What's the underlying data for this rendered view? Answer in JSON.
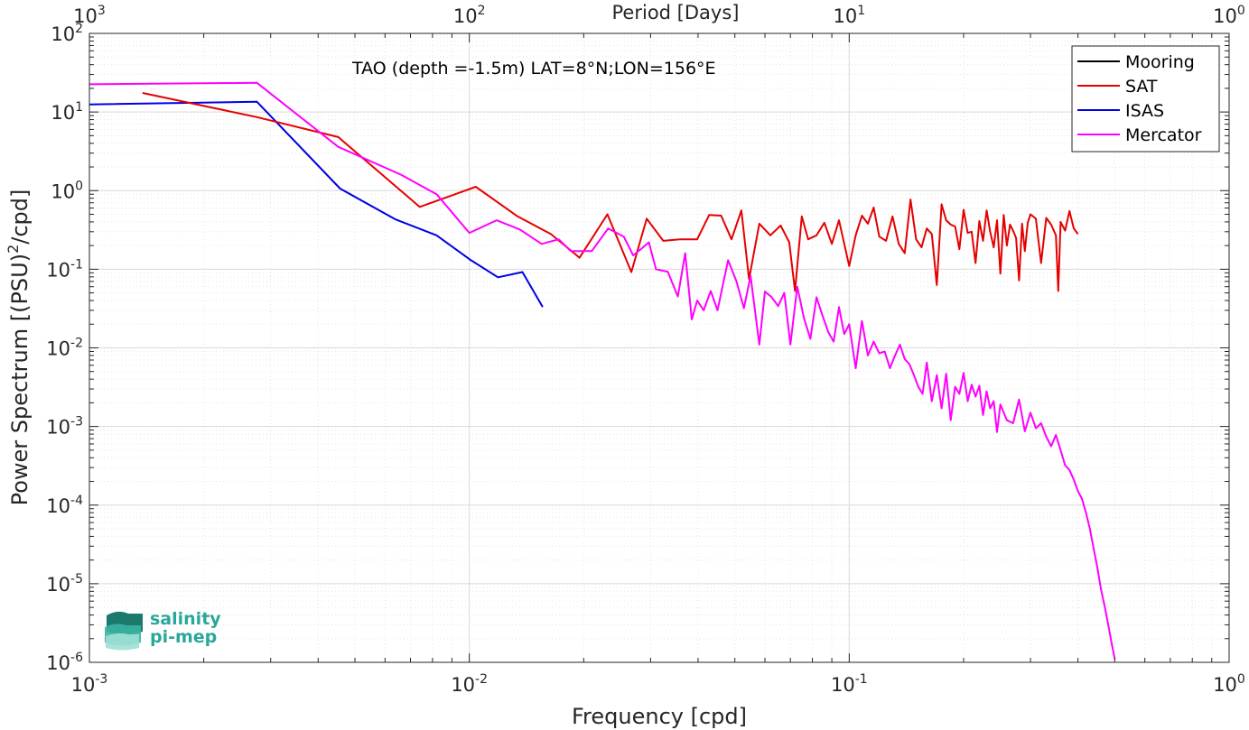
{
  "chart_data": {
    "type": "line",
    "title": "",
    "annotation": "TAO (depth =-1.5m) LAT=8°N;LON=156°E",
    "xlabel": "Frequency [cpd]",
    "ylabel_parts": [
      "Power Spectrum [(PSU)",
      "2",
      "/cpd]"
    ],
    "top_xlabel": "Period [Days]",
    "xscale": "log",
    "yscale": "log",
    "xlim": [
      0.001,
      1
    ],
    "ylim": [
      1e-06,
      100
    ],
    "grid": true,
    "legend_position": "top-right",
    "x_ticks": [
      {
        "base": "10",
        "exp": "-3"
      },
      {
        "base": "10",
        "exp": "-2"
      },
      {
        "base": "10",
        "exp": "-1"
      },
      {
        "base": "10",
        "exp": "0"
      }
    ],
    "top_ticks": [
      {
        "base": "10",
        "exp": "3"
      },
      {
        "base": "10",
        "exp": "2"
      },
      {
        "base": "10",
        "exp": "1"
      },
      {
        "base": "10",
        "exp": "0"
      }
    ],
    "y_ticks": [
      {
        "base": "10",
        "exp": "-6"
      },
      {
        "base": "10",
        "exp": "-5"
      },
      {
        "base": "10",
        "exp": "-4"
      },
      {
        "base": "10",
        "exp": "-3"
      },
      {
        "base": "10",
        "exp": "-2"
      },
      {
        "base": "10",
        "exp": "-1"
      },
      {
        "base": "10",
        "exp": "0"
      },
      {
        "base": "10",
        "exp": "1"
      },
      {
        "base": "10",
        "exp": "2"
      }
    ],
    "series": [
      {
        "name": "Mooring",
        "color": "#000000",
        "x": [],
        "y": []
      },
      {
        "name": "SAT",
        "color": "#e50000",
        "x": [
          0.00138,
          0.00276,
          0.00452,
          0.0074,
          0.0104,
          0.0134,
          0.0164,
          0.0195,
          0.0231,
          0.0267,
          0.0293,
          0.0324,
          0.0358,
          0.0398,
          0.0428,
          0.046,
          0.049,
          0.052,
          0.0545,
          0.058,
          0.062,
          0.066,
          0.0695,
          0.072,
          0.075,
          0.078,
          0.082,
          0.086,
          0.09,
          0.094,
          0.1,
          0.104,
          0.108,
          0.112,
          0.116,
          0.12,
          0.125,
          0.13,
          0.135,
          0.14,
          0.145,
          0.15,
          0.155,
          0.16,
          0.165,
          0.17,
          0.175,
          0.18,
          0.185,
          0.19,
          0.195,
          0.2,
          0.205,
          0.21,
          0.215,
          0.22,
          0.225,
          0.23,
          0.235,
          0.24,
          0.245,
          0.25,
          0.255,
          0.26,
          0.265,
          0.27,
          0.275,
          0.28,
          0.285,
          0.29,
          0.295,
          0.3,
          0.31,
          0.32,
          0.33,
          0.34,
          0.35,
          0.355,
          0.36,
          0.37,
          0.38,
          0.39,
          0.4
        ],
        "y": [
          17.5,
          8.6,
          4.8,
          0.62,
          1.12,
          0.47,
          0.28,
          0.14,
          0.5,
          0.092,
          0.44,
          0.23,
          0.24,
          0.24,
          0.49,
          0.48,
          0.24,
          0.56,
          0.075,
          0.38,
          0.27,
          0.36,
          0.22,
          0.053,
          0.47,
          0.24,
          0.27,
          0.39,
          0.21,
          0.42,
          0.11,
          0.27,
          0.48,
          0.38,
          0.61,
          0.26,
          0.23,
          0.47,
          0.21,
          0.16,
          0.77,
          0.24,
          0.19,
          0.33,
          0.28,
          0.063,
          0.67,
          0.42,
          0.37,
          0.35,
          0.18,
          0.57,
          0.29,
          0.3,
          0.12,
          0.41,
          0.23,
          0.56,
          0.3,
          0.19,
          0.42,
          0.088,
          0.49,
          0.2,
          0.37,
          0.31,
          0.25,
          0.072,
          0.38,
          0.17,
          0.39,
          0.5,
          0.44,
          0.12,
          0.45,
          0.37,
          0.27,
          0.053,
          0.4,
          0.31,
          0.55,
          0.33,
          0.28
        ]
      },
      {
        "name": "ISAS",
        "color": "#0000e6",
        "x": [
          0.001,
          0.00276,
          0.00457,
          0.0064,
          0.0082,
          0.0101,
          0.0119,
          0.0138,
          0.0156
        ],
        "y": [
          12.5,
          13.5,
          1.06,
          0.43,
          0.27,
          0.13,
          0.079,
          0.092,
          0.033
        ]
      },
      {
        "name": "Mercator",
        "color": "#ff00ff",
        "x": [
          0.001,
          0.00276,
          0.00452,
          0.0066,
          0.0082,
          0.01,
          0.0118,
          0.0136,
          0.0155,
          0.0172,
          0.0185,
          0.0198,
          0.021,
          0.0232,
          0.0255,
          0.027,
          0.0283,
          0.0297,
          0.031,
          0.0333,
          0.0354,
          0.037,
          0.0385,
          0.0398,
          0.0414,
          0.0432,
          0.045,
          0.048,
          0.0505,
          0.0528,
          0.055,
          0.058,
          0.06,
          0.0625,
          0.065,
          0.0675,
          0.07,
          0.073,
          0.076,
          0.079,
          0.082,
          0.085,
          0.088,
          0.091,
          0.094,
          0.097,
          0.1,
          0.104,
          0.108,
          0.112,
          0.116,
          0.12,
          0.124,
          0.128,
          0.132,
          0.136,
          0.14,
          0.144,
          0.148,
          0.152,
          0.156,
          0.16,
          0.165,
          0.17,
          0.175,
          0.18,
          0.185,
          0.19,
          0.195,
          0.2,
          0.205,
          0.21,
          0.215,
          0.22,
          0.225,
          0.23,
          0.235,
          0.24,
          0.245,
          0.25,
          0.26,
          0.27,
          0.28,
          0.29,
          0.3,
          0.31,
          0.32,
          0.33,
          0.34,
          0.35,
          0.36,
          0.37,
          0.38,
          0.39,
          0.4,
          0.41,
          0.42,
          0.43,
          0.44,
          0.45,
          0.46,
          0.47,
          0.48,
          0.49,
          0.5
        ],
        "y": [
          22.5,
          23.5,
          3.6,
          1.6,
          0.9,
          0.29,
          0.42,
          0.32,
          0.21,
          0.24,
          0.17,
          0.17,
          0.17,
          0.33,
          0.26,
          0.15,
          0.18,
          0.22,
          0.1,
          0.093,
          0.045,
          0.16,
          0.023,
          0.04,
          0.03,
          0.053,
          0.03,
          0.13,
          0.07,
          0.032,
          0.082,
          0.011,
          0.052,
          0.044,
          0.034,
          0.05,
          0.011,
          0.06,
          0.024,
          0.013,
          0.044,
          0.026,
          0.016,
          0.012,
          0.033,
          0.015,
          0.02,
          0.0055,
          0.022,
          0.008,
          0.012,
          0.0085,
          0.009,
          0.0055,
          0.008,
          0.011,
          0.0072,
          0.0062,
          0.0045,
          0.0032,
          0.0026,
          0.0065,
          0.0021,
          0.0045,
          0.0017,
          0.0047,
          0.0012,
          0.0032,
          0.0026,
          0.0048,
          0.0021,
          0.0034,
          0.0024,
          0.0033,
          0.0014,
          0.0028,
          0.0017,
          0.0021,
          0.00085,
          0.0019,
          0.0012,
          0.0011,
          0.0022,
          0.00087,
          0.0015,
          0.00095,
          0.0011,
          0.00074,
          0.00056,
          0.00078,
          0.0005,
          0.00032,
          0.00028,
          0.00021,
          0.00015,
          0.00012,
          8e-05,
          5e-05,
          2.8e-05,
          1.6e-05,
          8.5e-06,
          5.2e-06,
          3.1e-06,
          1.8e-06,
          1.1e-06
        ]
      }
    ],
    "logo": {
      "line1": "salinity",
      "line2": "pi-mep"
    }
  }
}
